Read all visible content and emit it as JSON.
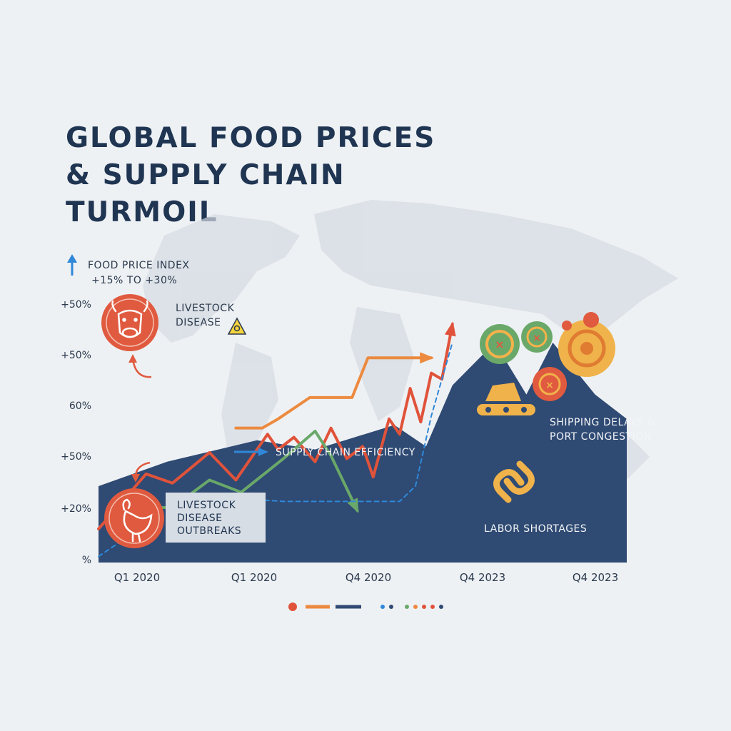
{
  "title_lines": [
    "GLOBAL FOOD PRICES",
    "& SUPPLY CHAIN",
    "TURMOIL"
  ],
  "colors": {
    "navy": "#2f4a73",
    "orange_red": "#e0533a",
    "orange": "#ec8a3f",
    "green": "#6aa86a",
    "blue": "#2f88d8",
    "gold": "#f0b24a",
    "background": "#eef1f4"
  },
  "annotations": {
    "food_index_line1": "FOOD PRICE INDEX",
    "food_index_line2": "+15% TO +30%",
    "livestock_line1": "LIVESTOCK",
    "livestock_line2": "DISEASE",
    "supply_chain": "SUPPLY CHAIN EFFICIENCY",
    "outbreaks_line1": "LIVESTOCK",
    "outbreaks_line2": "DISEASE",
    "outbreaks_line3": "OUTBREAKS",
    "shipping_line1": "SHIPPING DELAYS &",
    "shipping_line2": "PORT CONGESTION",
    "labor": "LABOR SHORTAGES"
  },
  "icons": [
    "up-arrow-icon",
    "cow-icon",
    "biohazard-icon",
    "chicken-icon",
    "gear-icon",
    "conveyor-icon",
    "chain-link-icon"
  ],
  "chart_data": {
    "type": "line",
    "title": "GLOBAL FOOD PRICES & SUPPLY CHAIN TURMOIL",
    "y_tick_labels": [
      "+50%",
      "+50%",
      "60%",
      "+50%",
      "+20%",
      "%"
    ],
    "x_tick_labels": [
      "Q1 2020",
      "Q1 2020",
      "Q4 2020",
      "Q4 2023",
      "Q4 2023"
    ],
    "legend": [
      "orange-red dot",
      "orange line",
      "navy line",
      "blue dot",
      "green dot",
      "orange dot",
      "red dot",
      "navy dot"
    ],
    "series": [
      {
        "color": "#2f4a73",
        "kind": "area",
        "x": [
          0,
          0.13,
          0.3,
          0.41,
          0.56,
          0.62,
          0.67,
          0.75,
          0.81,
          0.86,
          0.94,
          1.0
        ],
        "y": [
          25,
          33,
          40,
          37,
          45,
          38,
          58,
          72,
          55,
          72,
          55,
          47
        ]
      },
      {
        "color": "#e0533a",
        "x": [
          0,
          0.09,
          0.14,
          0.21,
          0.26,
          0.32,
          0.34,
          0.37,
          0.41,
          0.44,
          0.47,
          0.5,
          0.52,
          0.55,
          0.57,
          0.59,
          0.61,
          0.63,
          0.65,
          0.67
        ],
        "y": [
          11,
          29,
          26,
          36,
          27,
          42,
          37,
          41,
          33,
          44,
          34,
          38,
          28,
          47,
          42,
          57,
          46,
          62,
          60,
          78
        ]
      },
      {
        "color": "#ec8a3f",
        "x": [
          0.26,
          0.31,
          0.34,
          0.4,
          0.48,
          0.51,
          0.6,
          0.63
        ],
        "y": [
          44,
          44,
          47,
          54,
          54,
          67,
          67,
          67
        ]
      },
      {
        "color": "#6aa86a",
        "x": [
          0.09,
          0.14,
          0.21,
          0.27,
          0.35,
          0.41,
          0.44,
          0.49
        ],
        "y": [
          18,
          18,
          27,
          23,
          34,
          43,
          35,
          17
        ]
      },
      {
        "color": "#2f88d8",
        "dashed": true,
        "x": [
          0,
          0.06,
          0.13,
          0.19,
          0.26,
          0.35,
          0.44,
          0.57,
          0.6,
          0.63,
          0.67
        ],
        "y": [
          2,
          9,
          15,
          20,
          21,
          20,
          20,
          20,
          25,
          48,
          72
        ]
      }
    ],
    "grid": false,
    "legend_placement": "bottom"
  }
}
